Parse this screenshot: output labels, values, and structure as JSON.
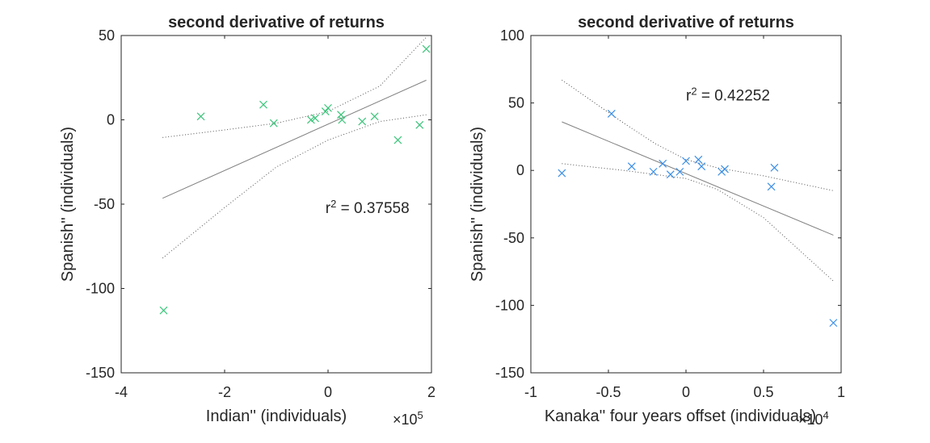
{
  "chart_data": [
    {
      "type": "scatter",
      "title": "second derivative of returns",
      "xlabel": "Indian'' (individuals)",
      "ylabel": "Spanish'' (individuals)",
      "x_multiplier": "×10",
      "x_multiplier_exp": "5",
      "xlim": [
        -400000,
        200000
      ],
      "ylim": [
        -150,
        50
      ],
      "xticks": [
        -400000,
        -200000,
        0,
        200000
      ],
      "xtick_labels": [
        "-4",
        "-2",
        "0",
        "2"
      ],
      "yticks": [
        -150,
        -100,
        -50,
        0,
        50
      ],
      "ytick_labels": [
        "-150",
        "-100",
        "-50",
        "0",
        "50"
      ],
      "marker_color": "#3bc47a",
      "annotation": {
        "prefix": "r",
        "sup": "2",
        "suffix": " = 0.37558",
        "x": -5000,
        "y": -52
      },
      "points": [
        {
          "x": -318000,
          "y": -113
        },
        {
          "x": -246000,
          "y": 2
        },
        {
          "x": -125000,
          "y": 9
        },
        {
          "x": -105000,
          "y": -2
        },
        {
          "x": -33000,
          "y": 0
        },
        {
          "x": -25000,
          "y": 1
        },
        {
          "x": -5000,
          "y": 5
        },
        {
          "x": 0,
          "y": 7
        },
        {
          "x": 25000,
          "y": 3
        },
        {
          "x": 27000,
          "y": 0
        },
        {
          "x": 66000,
          "y": -1
        },
        {
          "x": 90000,
          "y": 2
        },
        {
          "x": 135000,
          "y": -12
        },
        {
          "x": 177000,
          "y": -3
        },
        {
          "x": 190000,
          "y": 42
        }
      ],
      "fit_line": [
        [
          -320000,
          -46.5
        ],
        [
          190000,
          23.5
        ]
      ],
      "conf_upper": [
        [
          -320000,
          -10.5
        ],
        [
          -200000,
          -6
        ],
        [
          -100000,
          -2
        ],
        [
          0,
          5
        ],
        [
          100000,
          20
        ],
        [
          190000,
          49
        ]
      ],
      "conf_lower": [
        [
          -320000,
          -82
        ],
        [
          -200000,
          -52
        ],
        [
          -100000,
          -28
        ],
        [
          0,
          -12
        ],
        [
          100000,
          -1
        ],
        [
          190000,
          3
        ]
      ]
    },
    {
      "type": "scatter",
      "title": "second derivative of returns",
      "xlabel": "Kanaka'' four years offset (individuals)",
      "ylabel": "Spanish'' (individuals)",
      "x_multiplier": "×10",
      "x_multiplier_exp": "4",
      "xlim": [
        -10000,
        10000
      ],
      "ylim": [
        -150,
        100
      ],
      "xticks": [
        -10000,
        -5000,
        0,
        5000,
        10000
      ],
      "xtick_labels": [
        "-1",
        "-0.5",
        "0",
        "0.5",
        "1"
      ],
      "yticks": [
        -150,
        -100,
        -50,
        0,
        50,
        100
      ],
      "ytick_labels": [
        "-150",
        "-100",
        "-50",
        "0",
        "50",
        "100"
      ],
      "marker_color": "#3a8ee6",
      "annotation": {
        "prefix": "r",
        "sup": "2",
        "suffix": " = 0.42252",
        "x": 0,
        "y": 56
      },
      "points": [
        {
          "x": -8000,
          "y": -2
        },
        {
          "x": -4800,
          "y": 42
        },
        {
          "x": -3500,
          "y": 3
        },
        {
          "x": -2100,
          "y": -1
        },
        {
          "x": -1500,
          "y": 5
        },
        {
          "x": -1000,
          "y": -3
        },
        {
          "x": -400,
          "y": -1
        },
        {
          "x": 0,
          "y": 7
        },
        {
          "x": 800,
          "y": 8
        },
        {
          "x": 1000,
          "y": 3
        },
        {
          "x": 2300,
          "y": -1
        },
        {
          "x": 2500,
          "y": 1
        },
        {
          "x": 5500,
          "y": -12
        },
        {
          "x": 5700,
          "y": 2
        },
        {
          "x": 9500,
          "y": -113
        }
      ],
      "fit_line": [
        [
          -8000,
          36
        ],
        [
          9500,
          -48
        ]
      ],
      "conf_upper": [
        [
          -8000,
          67
        ],
        [
          -4000,
          35
        ],
        [
          -2000,
          20
        ],
        [
          0,
          8
        ],
        [
          2000,
          2
        ],
        [
          5000,
          -4
        ],
        [
          9500,
          -15
        ]
      ],
      "conf_lower": [
        [
          -8000,
          5
        ],
        [
          -4000,
          0
        ],
        [
          -2000,
          -3
        ],
        [
          0,
          -6
        ],
        [
          2000,
          -14
        ],
        [
          5000,
          -35
        ],
        [
          9500,
          -82
        ]
      ]
    }
  ]
}
